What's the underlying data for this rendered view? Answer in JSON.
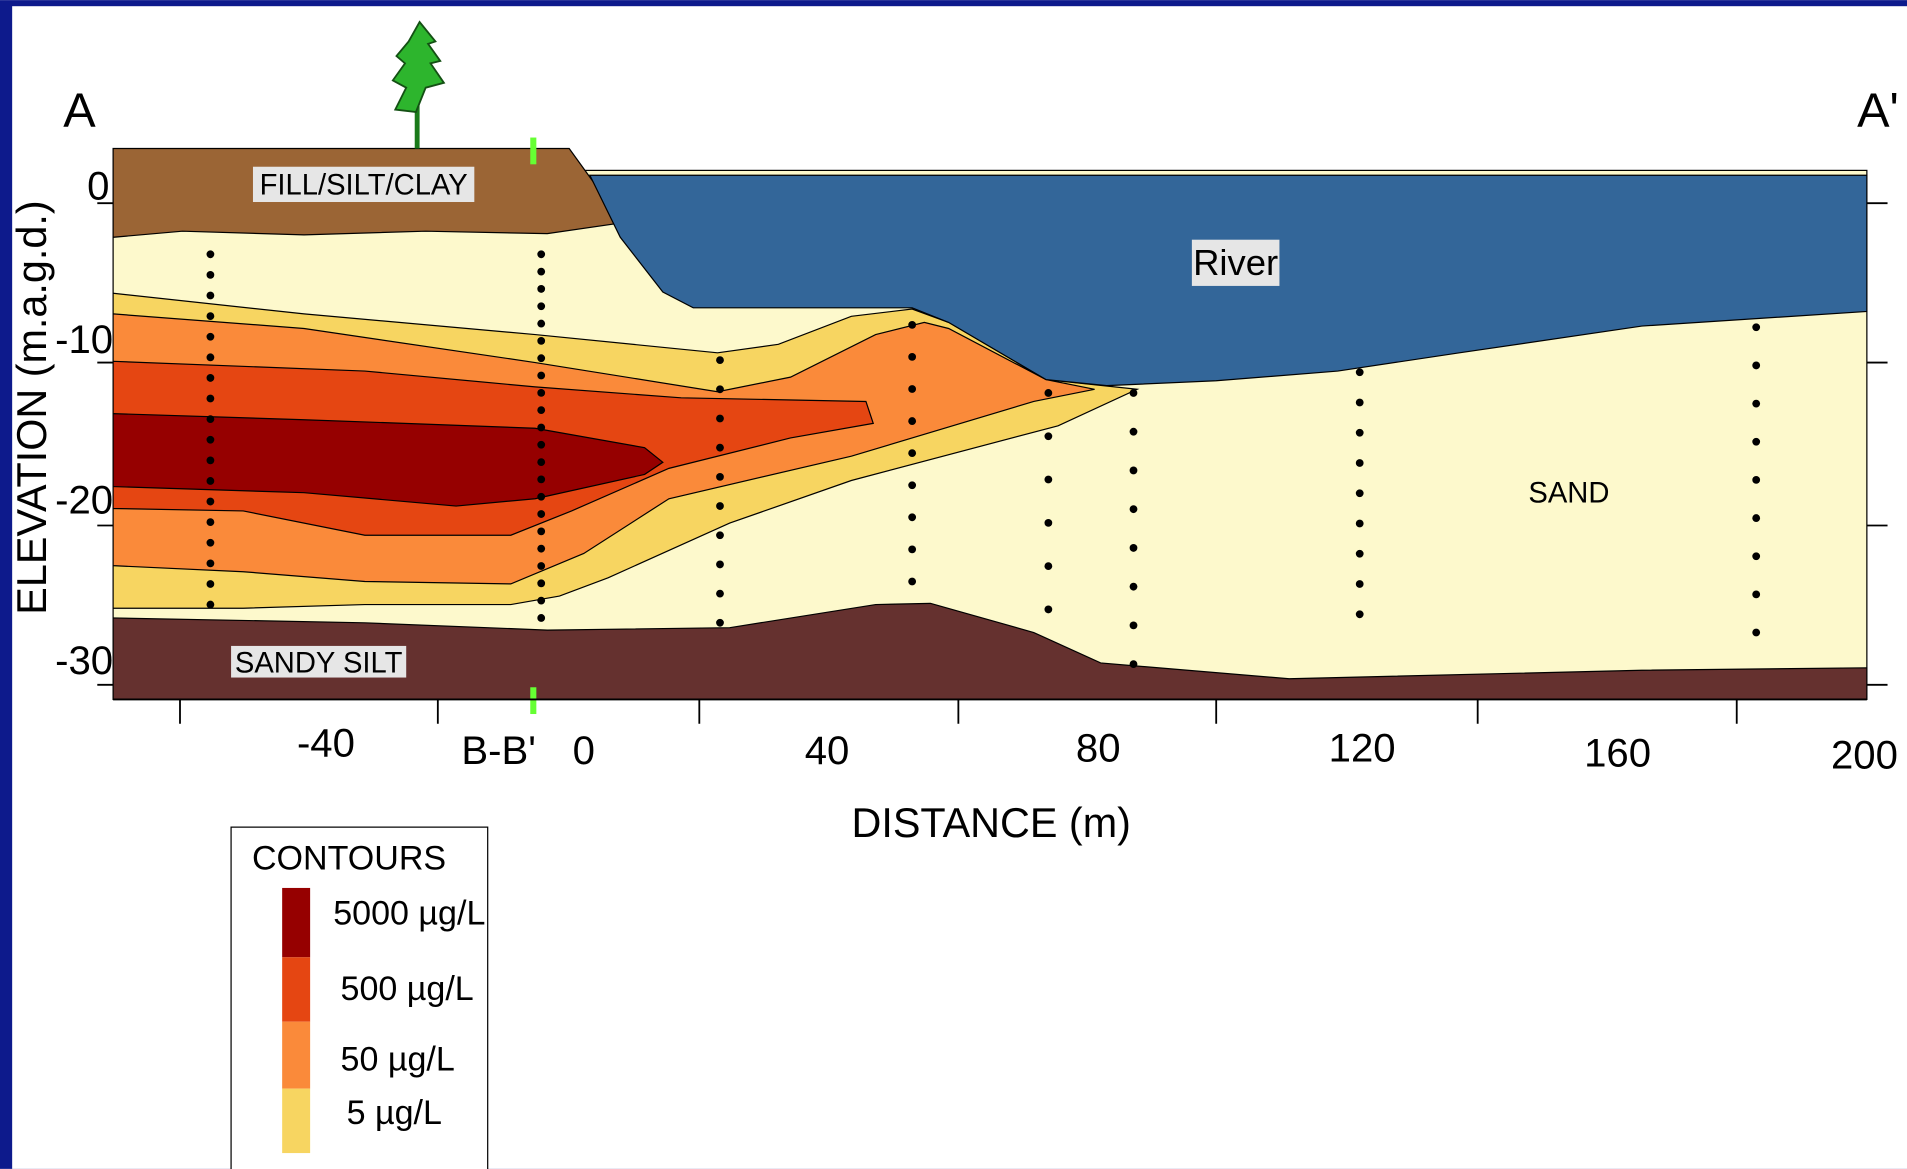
{
  "labels": {
    "a": "A",
    "a_prime": "A'"
  },
  "axes": {
    "y_label": "ELEVATION (m.a.g.d.)",
    "x_label": "DISTANCE (m)",
    "x_ticks": [
      "-40",
      "B-B'",
      "0",
      "40",
      "80",
      "120",
      "160",
      "200"
    ],
    "y_ticks": [
      "0",
      "-10",
      "-20",
      "-30"
    ]
  },
  "regions": {
    "fill": "FILL/SILT/CLAY",
    "river": "River",
    "sand": "SAND",
    "sandy_silt": "SANDY SILT"
  },
  "legend": {
    "title": "CONTOURS",
    "items": [
      "5000 µg/L",
      "500 µg/L",
      "50 µg/L",
      "5 µg/L"
    ]
  }
}
